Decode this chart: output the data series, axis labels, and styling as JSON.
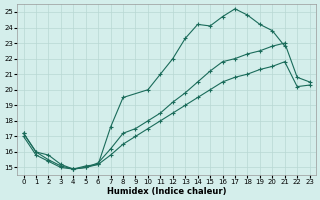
{
  "xlabel": "Humidex (Indice chaleur)",
  "background_color": "#d4eeeb",
  "grid_color": "#b8d8d4",
  "line_color": "#1a6b5a",
  "xlim": [
    -0.5,
    23.5
  ],
  "ylim": [
    14.5,
    25.5
  ],
  "xticks": [
    0,
    1,
    2,
    3,
    4,
    5,
    6,
    7,
    8,
    9,
    10,
    11,
    12,
    13,
    14,
    15,
    16,
    17,
    18,
    19,
    20,
    21,
    22,
    23
  ],
  "yticks": [
    15,
    16,
    17,
    18,
    19,
    20,
    21,
    22,
    23,
    24,
    25
  ],
  "series": [
    {
      "x": [
        0,
        1,
        2,
        3,
        4,
        5,
        6,
        7,
        8,
        10,
        11,
        12,
        13,
        14,
        15,
        16,
        17,
        18,
        19,
        20,
        21
      ],
      "y": [
        17.2,
        16.0,
        15.8,
        15.2,
        14.9,
        15.1,
        15.2,
        17.6,
        19.5,
        20.0,
        21.0,
        22.0,
        23.3,
        24.2,
        24.1,
        24.7,
        25.2,
        24.8,
        24.2,
        23.8,
        22.8
      ]
    },
    {
      "x": [
        0,
        1,
        2,
        3,
        4,
        5,
        6,
        7,
        8,
        9,
        10,
        11,
        12,
        13,
        14,
        15,
        16,
        17,
        18,
        19,
        20,
        21,
        22,
        23
      ],
      "y": [
        17.2,
        16.0,
        15.5,
        15.1,
        14.9,
        15.0,
        15.3,
        16.2,
        17.2,
        17.5,
        18.0,
        18.5,
        19.2,
        19.8,
        20.5,
        21.2,
        21.8,
        22.0,
        22.3,
        22.5,
        22.8,
        23.0,
        20.8,
        20.5
      ]
    },
    {
      "x": [
        0,
        1,
        2,
        3,
        4,
        5,
        6,
        7,
        8,
        9,
        10,
        11,
        12,
        13,
        14,
        15,
        16,
        17,
        18,
        19,
        20,
        21,
        22,
        23
      ],
      "y": [
        17.0,
        15.8,
        15.4,
        15.0,
        14.9,
        15.0,
        15.2,
        15.8,
        16.5,
        17.0,
        17.5,
        18.0,
        18.5,
        19.0,
        19.5,
        20.0,
        20.5,
        20.8,
        21.0,
        21.3,
        21.5,
        21.8,
        20.2,
        20.3
      ]
    }
  ]
}
